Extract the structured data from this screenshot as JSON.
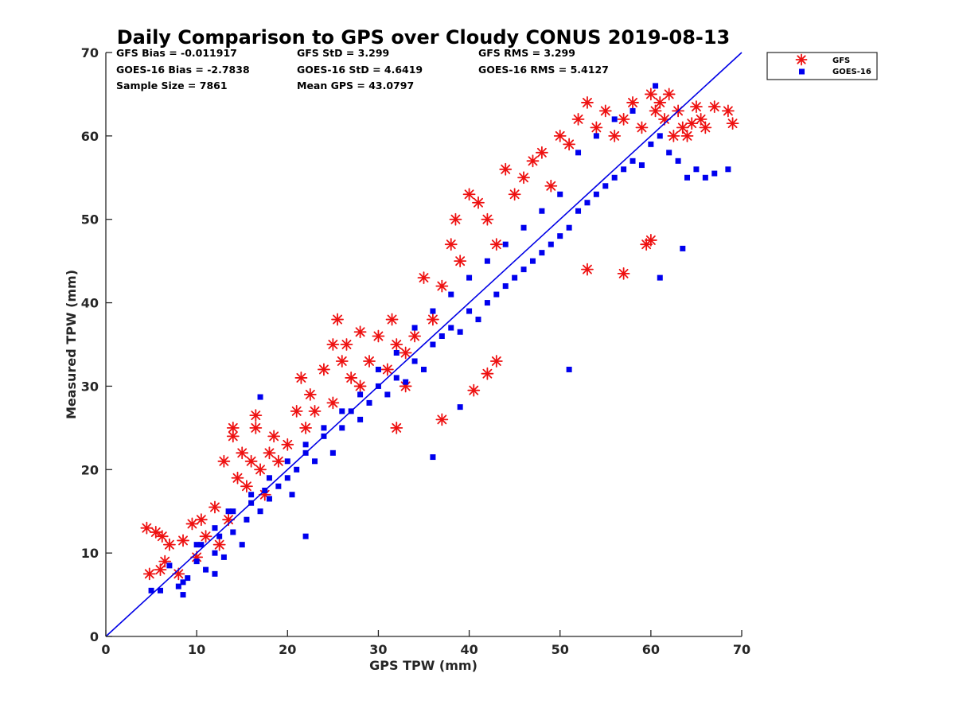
{
  "chart_data": {
    "type": "scatter",
    "title": "Daily Comparison to GPS over Cloudy CONUS 2019-08-13",
    "xlabel": "GPS TPW (mm)",
    "ylabel": "Measured TPW (mm)",
    "xlim": [
      0,
      70
    ],
    "ylim": [
      0,
      70
    ],
    "xticks": [
      0,
      10,
      20,
      30,
      40,
      50,
      60,
      70
    ],
    "yticks": [
      0,
      10,
      20,
      30,
      40,
      50,
      60,
      70
    ],
    "grid": false,
    "legend_position": "outside-top-right",
    "reference_line": {
      "x": [
        0,
        70
      ],
      "y": [
        0,
        70
      ],
      "color": "#0000e6"
    },
    "stats": [
      "GFS Bias = -0.011917",
      "GFS StD = 3.299",
      "GFS RMS = 3.299",
      "GOES-16 Bias = -2.7838",
      "GOES-16 StD = 4.6419",
      "GOES-16 RMS = 5.4127",
      "Sample Size = 7861",
      "Mean GPS = 43.0797"
    ],
    "series": [
      {
        "name": "GFS",
        "marker": "asterisk",
        "color": "#ee1111",
        "x": [
          4.5,
          4.8,
          5.5,
          6.0,
          6.2,
          6.5,
          7.0,
          8.0,
          8.5,
          9.5,
          10.0,
          10.5,
          11.0,
          12.0,
          12.5,
          13.0,
          13.5,
          14.0,
          14.5,
          15.0,
          15.5,
          16.0,
          16.5,
          17.0,
          17.5,
          18.0,
          18.5,
          19.0,
          20.0,
          21.0,
          21.5,
          22.0,
          22.5,
          23.0,
          24.0,
          25.0,
          25.5,
          26.0,
          26.5,
          27.0,
          28.0,
          29.0,
          30.0,
          31.0,
          31.5,
          32.0,
          33.0,
          34.0,
          35.0,
          36.0,
          37.0,
          38.0,
          38.5,
          39.0,
          40.0,
          41.0,
          42.0,
          43.0,
          44.0,
          45.0,
          46.0,
          47.0,
          48.0,
          49.0,
          50.0,
          51.0,
          52.0,
          53.0,
          54.0,
          55.0,
          56.0,
          57.0,
          58.0,
          59.0,
          60.0,
          60.5,
          61.0,
          61.5,
          62.0,
          62.5,
          63.0,
          63.5,
          64.0,
          64.5,
          65.0,
          65.5,
          66.0,
          67.0,
          68.5,
          69.0,
          59.5,
          60.0,
          57.0,
          53.0,
          42.0,
          43.0,
          40.5,
          33.0,
          37.0,
          32.0,
          28.0,
          25.0,
          14.0,
          16.5
        ],
        "y": [
          13.0,
          7.5,
          12.5,
          8.0,
          12.0,
          9.0,
          11.0,
          7.5,
          11.5,
          13.5,
          9.5,
          14.0,
          12.0,
          15.5,
          11.0,
          21.0,
          14.0,
          24.0,
          19.0,
          22.0,
          18.0,
          21.0,
          25.0,
          20.0,
          17.0,
          22.0,
          24.0,
          21.0,
          23.0,
          27.0,
          31.0,
          25.0,
          29.0,
          27.0,
          32.0,
          28.0,
          38.0,
          33.0,
          35.0,
          31.0,
          30.0,
          33.0,
          36.0,
          32.0,
          38.0,
          35.0,
          34.0,
          36.0,
          43.0,
          38.0,
          42.0,
          47.0,
          50.0,
          45.0,
          53.0,
          52.0,
          50.0,
          47.0,
          56.0,
          53.0,
          55.0,
          57.0,
          58.0,
          54.0,
          60.0,
          59.0,
          62.0,
          64.0,
          61.0,
          63.0,
          60.0,
          62.0,
          64.0,
          61.0,
          65.0,
          63.0,
          64.0,
          62.0,
          65.0,
          60.0,
          63.0,
          61.0,
          60.0,
          61.5,
          63.5,
          62.0,
          61.0,
          63.5,
          63.0,
          61.5,
          47.0,
          47.5,
          43.5,
          44.0,
          31.5,
          33.0,
          29.5,
          30.0,
          26.0,
          25.0,
          36.5,
          35.0,
          25.0,
          26.5
        ]
      },
      {
        "name": "GOES-16",
        "marker": "square",
        "color": "#0000ee",
        "x": [
          5.0,
          6.0,
          7.0,
          8.0,
          8.5,
          9.0,
          10.0,
          10.5,
          11.0,
          12.0,
          12.5,
          13.0,
          13.5,
          14.0,
          15.0,
          15.5,
          16.0,
          17.0,
          17.5,
          18.0,
          19.0,
          20.0,
          20.5,
          21.0,
          22.0,
          23.0,
          24.0,
          25.0,
          26.0,
          27.0,
          28.0,
          29.0,
          30.0,
          31.0,
          32.0,
          33.0,
          34.0,
          35.0,
          36.0,
          37.0,
          38.0,
          39.0,
          40.0,
          41.0,
          42.0,
          43.0,
          44.0,
          45.0,
          46.0,
          47.0,
          48.0,
          49.0,
          50.0,
          51.0,
          52.0,
          53.0,
          54.0,
          55.0,
          56.0,
          57.0,
          58.0,
          59.0,
          60.0,
          61.0,
          62.0,
          63.0,
          64.0,
          65.0,
          66.0,
          67.0,
          68.5,
          60.5,
          58.0,
          56.0,
          54.0,
          52.0,
          50.0,
          48.0,
          46.0,
          44.0,
          42.0,
          40.0,
          38.0,
          36.0,
          34.0,
          32.0,
          30.0,
          28.0,
          26.0,
          24.0,
          22.0,
          20.0,
          18.0,
          16.0,
          14.0,
          12.0,
          10.0,
          17.0,
          22.0,
          36.0,
          39.0,
          51.0,
          61.0,
          63.5,
          12.0,
          8.5
        ],
        "y": [
          5.5,
          5.5,
          8.5,
          6.0,
          5.0,
          7.0,
          9.0,
          11.0,
          8.0,
          10.0,
          12.0,
          9.5,
          15.0,
          12.5,
          11.0,
          14.0,
          16.0,
          15.0,
          17.5,
          16.5,
          18.0,
          19.0,
          17.0,
          20.0,
          22.0,
          21.0,
          24.0,
          22.0,
          25.0,
          27.0,
          26.0,
          28.0,
          30.0,
          29.0,
          31.0,
          30.5,
          33.0,
          32.0,
          35.0,
          36.0,
          37.0,
          36.5,
          39.0,
          38.0,
          40.0,
          41.0,
          42.0,
          43.0,
          44.0,
          45.0,
          46.0,
          47.0,
          48.0,
          49.0,
          51.0,
          52.0,
          53.0,
          54.0,
          55.0,
          56.0,
          57.0,
          56.5,
          59.0,
          60.0,
          58.0,
          57.0,
          55.0,
          56.0,
          55.0,
          55.5,
          56.0,
          66.0,
          63.0,
          62.0,
          60.0,
          58.0,
          53.0,
          51.0,
          49.0,
          47.0,
          45.0,
          43.0,
          41.0,
          39.0,
          37.0,
          34.0,
          32.0,
          29.0,
          27.0,
          25.0,
          23.0,
          21.0,
          19.0,
          17.0,
          15.0,
          13.0,
          11.0,
          28.7,
          12.0,
          21.5,
          27.5,
          32.0,
          43.0,
          46.5,
          7.5,
          6.5
        ]
      }
    ]
  }
}
